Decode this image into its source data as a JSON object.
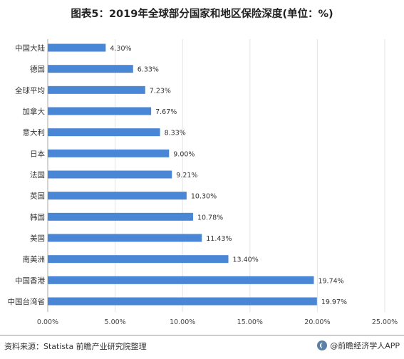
{
  "title": "图表5：2019年全球部分国家和地区保险深度(单位：%)",
  "source": "资料来源：Statista 前瞻产业研究院整理",
  "brand": "@前瞻经济学人APP",
  "colors": {
    "bar": "#4a86d6",
    "grid": "#e3e3e3",
    "axis": "#aaaaaa"
  },
  "chart_data": {
    "type": "bar",
    "orientation": "horizontal",
    "title": "图表5：2019年全球部分国家和地区保险深度(单位：%)",
    "categories": [
      "中国大陆",
      "德国",
      "全球平均",
      "加拿大",
      "意大利",
      "日本",
      "法国",
      "英国",
      "韩国",
      "美国",
      "南美洲",
      "中国香港",
      "中国台湾省"
    ],
    "values": [
      4.3,
      6.33,
      7.23,
      7.67,
      8.33,
      9.0,
      9.21,
      10.3,
      10.78,
      11.43,
      13.4,
      19.74,
      19.97
    ],
    "data_labels": [
      "4.30%",
      "6.33%",
      "7.23%",
      "7.67%",
      "8.33%",
      "9.00%",
      "9.21%",
      "10.30%",
      "10.78%",
      "11.43%",
      "13.40%",
      "19.74%",
      "19.97%"
    ],
    "xlim": [
      0,
      25
    ],
    "xticks": [
      0,
      5,
      10,
      15,
      20,
      25
    ],
    "xtick_labels": [
      "0.00%",
      "5.00%",
      "10.00%",
      "15.00%",
      "20.00%",
      "25.00%"
    ],
    "xlabel": "",
    "ylabel": "",
    "grid": true
  }
}
